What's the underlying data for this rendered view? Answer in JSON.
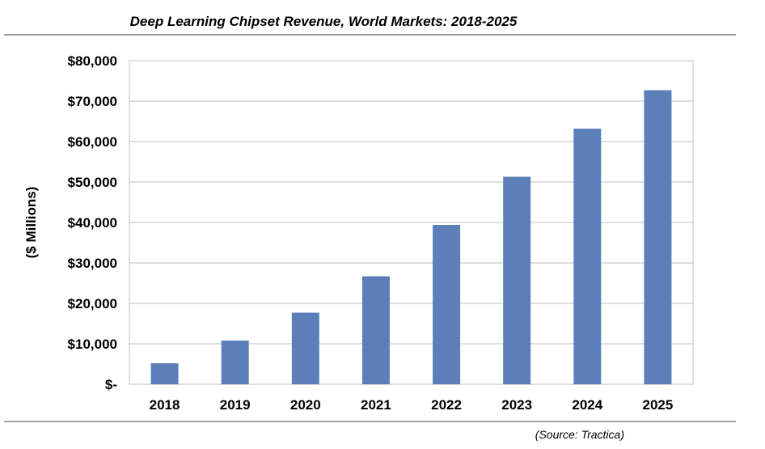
{
  "chart_data": {
    "type": "bar",
    "title": "Deep Learning Chipset Revenue, World Markets: 2018-2025",
    "xlabel": "",
    "ylabel": "($ Millions)",
    "categories": [
      "2018",
      "2019",
      "2020",
      "2021",
      "2022",
      "2023",
      "2024",
      "2025"
    ],
    "values": [
      5200,
      10800,
      17700,
      26700,
      39400,
      51300,
      63200,
      72700
    ],
    "ylim": [
      0,
      80000
    ],
    "yticks": [
      0,
      10000,
      20000,
      30000,
      40000,
      50000,
      60000,
      70000,
      80000
    ],
    "ytick_labels": [
      "$-",
      "$10,000",
      "$20,000",
      "$30,000",
      "$40,000",
      "$50,000",
      "$60,000",
      "$70,000",
      "$80,000"
    ],
    "grid": true,
    "bar_color": "#5B80B9",
    "grid_color": "#BFBFBF",
    "source": "(Source: Tractica)"
  }
}
